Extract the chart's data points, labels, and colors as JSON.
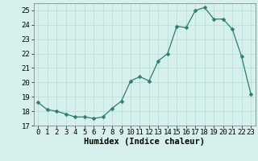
{
  "x": [
    0,
    1,
    2,
    3,
    4,
    5,
    6,
    7,
    8,
    9,
    10,
    11,
    12,
    13,
    14,
    15,
    16,
    17,
    18,
    19,
    20,
    21,
    22,
    23
  ],
  "y": [
    18.6,
    18.1,
    18.0,
    17.8,
    17.6,
    17.6,
    17.5,
    17.6,
    18.2,
    18.7,
    20.1,
    20.4,
    20.1,
    21.5,
    22.0,
    23.9,
    23.8,
    25.0,
    25.2,
    24.4,
    24.4,
    23.7,
    21.8,
    19.2
  ],
  "line_color": "#2e7d6e",
  "marker": "D",
  "marker_size": 2.5,
  "bg_color": "#d6f0ee",
  "grid_color": "#aed4d0",
  "xlabel": "Humidex (Indice chaleur)",
  "xlim": [
    -0.5,
    23.5
  ],
  "ylim": [
    17.0,
    25.5
  ],
  "yticks": [
    17,
    18,
    19,
    20,
    21,
    22,
    23,
    24,
    25
  ],
  "xticks": [
    0,
    1,
    2,
    3,
    4,
    5,
    6,
    7,
    8,
    9,
    10,
    11,
    12,
    13,
    14,
    15,
    16,
    17,
    18,
    19,
    20,
    21,
    22,
    23
  ],
  "tick_fontsize": 6.5,
  "label_fontsize": 7.5
}
